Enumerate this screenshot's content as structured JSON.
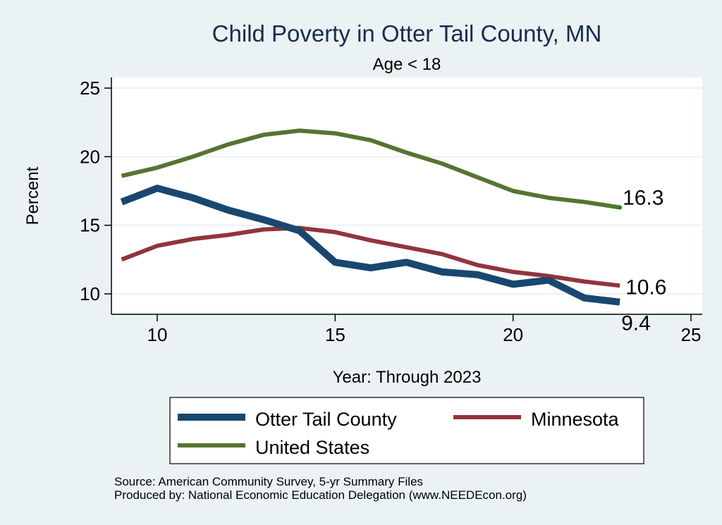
{
  "chart_data": {
    "type": "line",
    "title": "Child Poverty in Otter Tail County, MN",
    "subtitle": "Age < 18",
    "xlabel": "Year: Through 2023",
    "ylabel": "Percent",
    "xlim": [
      8.7,
      25.3
    ],
    "ylim": [
      8.7,
      25.5
    ],
    "xticks": [
      10,
      15,
      20,
      25
    ],
    "yticks": [
      10,
      15,
      20,
      25
    ],
    "grid": true,
    "legend_position": "bottom",
    "x": [
      9,
      10,
      11,
      12,
      13,
      14,
      15,
      16,
      17,
      18,
      19,
      20,
      21,
      22,
      23
    ],
    "series": [
      {
        "name": "Otter Tail County",
        "color": "#1a476f",
        "weight": "thick",
        "values": [
          16.7,
          17.7,
          17.0,
          16.1,
          15.4,
          14.6,
          12.3,
          11.9,
          12.3,
          11.6,
          11.4,
          10.7,
          11.0,
          9.7,
          9.4
        ],
        "end_label": "9.4"
      },
      {
        "name": "Minnesota",
        "color": "#90353b",
        "weight": "medium",
        "values": [
          12.5,
          13.5,
          14.0,
          14.3,
          14.7,
          14.8,
          14.5,
          13.9,
          13.4,
          12.9,
          12.1,
          11.6,
          11.3,
          10.9,
          10.6
        ],
        "end_label": "10.6"
      },
      {
        "name": "United States",
        "color": "#55752f",
        "weight": "medium",
        "values": [
          18.6,
          19.2,
          20.0,
          20.9,
          21.6,
          21.9,
          21.7,
          21.2,
          20.3,
          19.5,
          18.5,
          17.5,
          17.0,
          16.7,
          16.3
        ],
        "end_label": "16.3"
      }
    ],
    "annotations": [
      "Source: American Community Survey, 5-yr Summary Files",
      "Produced by: National Economic Education Delegation (www.NEEDEcon.org)"
    ]
  }
}
